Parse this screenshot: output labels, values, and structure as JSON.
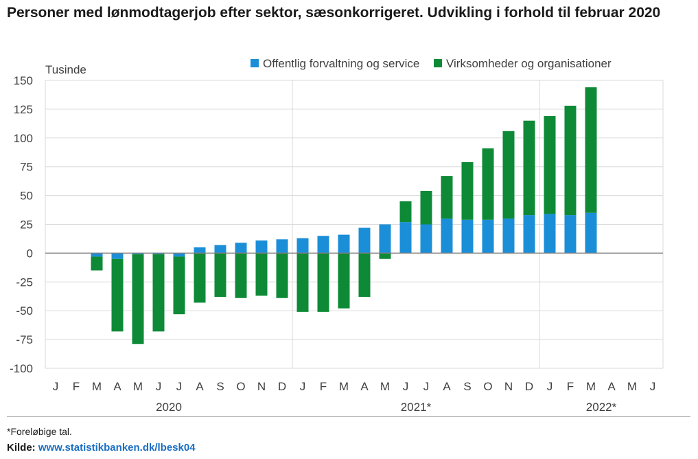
{
  "title": "Personer med lønmodtagerjob efter sektor, sæsonkorrigeret. Udvikling i forhold til februar 2020",
  "footnote": "*Foreløbige tal.",
  "source_label": "Kilde:",
  "source_link": "www.statistikbanken.dk/lbesk04",
  "colors": {
    "public": "#1b8ed8",
    "private": "#0e8a37",
    "grid": "#d9d9d9",
    "zero_line": "#7f7f7f",
    "text": "#404040"
  },
  "chart_data": {
    "type": "bar",
    "stacked": true,
    "unit_label": "Tusinde",
    "ylim": [
      -100,
      150
    ],
    "yticks": [
      150,
      125,
      100,
      75,
      50,
      25,
      0,
      -25,
      -50,
      -75,
      -100
    ],
    "grid": true,
    "legend_position": "top-right",
    "categories": [
      "J",
      "F",
      "M",
      "A",
      "M",
      "J",
      "J",
      "A",
      "S",
      "O",
      "N",
      "D",
      "J",
      "F",
      "M",
      "A",
      "M",
      "J",
      "J",
      "A",
      "S",
      "O",
      "N",
      "D",
      "J",
      "F",
      "M",
      "A",
      "M",
      "J"
    ],
    "year_labels": [
      {
        "label": "2020",
        "first_index": 0,
        "last_index": 11
      },
      {
        "label": "2021*",
        "first_index": 12,
        "last_index": 23
      },
      {
        "label": "2022*",
        "first_index": 24,
        "last_index": 29
      }
    ],
    "series": [
      {
        "name": "Offentlig forvaltning og service",
        "values": [
          null,
          null,
          -3,
          -5,
          -1,
          -1,
          -3,
          5,
          7,
          9,
          11,
          12,
          13,
          15,
          16,
          22,
          25,
          27,
          25,
          30,
          29,
          29,
          30,
          33,
          34,
          33,
          35,
          null,
          null,
          null
        ]
      },
      {
        "name": "Virksomheder og organisationer",
        "values": [
          null,
          null,
          -12,
          -63,
          -78,
          -67,
          -50,
          -43,
          -38,
          -39,
          -37,
          -39,
          -51,
          -51,
          -48,
          -38,
          -5,
          18,
          29,
          37,
          50,
          62,
          76,
          82,
          85,
          95,
          109,
          null,
          null,
          null
        ]
      }
    ]
  }
}
